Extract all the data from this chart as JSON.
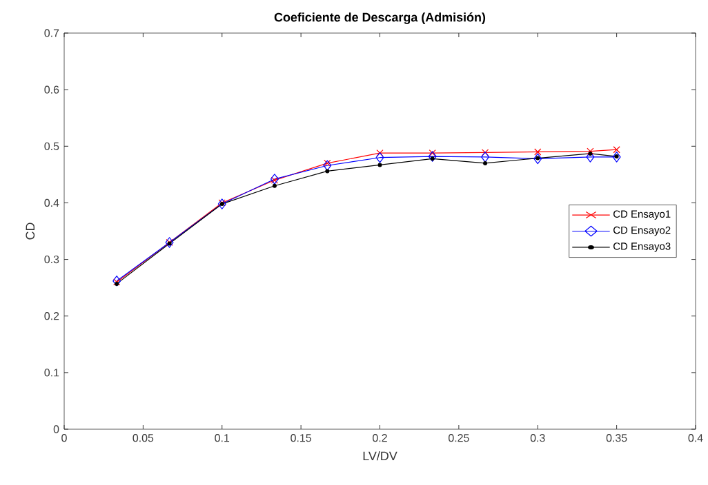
{
  "chart_data": {
    "type": "line",
    "title": "Coeficiente de Descarga (Admisión)",
    "xlabel": "LV/DV",
    "ylabel": "CD",
    "x": [
      0.0333,
      0.0667,
      0.1,
      0.1333,
      0.1667,
      0.2,
      0.2333,
      0.2667,
      0.3,
      0.3333,
      0.35
    ],
    "series": [
      {
        "name": "CD Ensayo1",
        "color": "#ff0000",
        "marker": "cross",
        "values": [
          0.26,
          0.33,
          0.4,
          0.44,
          0.47,
          0.488,
          0.488,
          0.489,
          0.49,
          0.491,
          0.494
        ]
      },
      {
        "name": "CD Ensayo2",
        "color": "#0000ff",
        "marker": "diamond",
        "values": [
          0.262,
          0.33,
          0.398,
          0.442,
          0.466,
          0.48,
          0.482,
          0.481,
          0.478,
          0.481,
          0.481
        ]
      },
      {
        "name": "CD Ensayo3",
        "color": "#000000",
        "marker": "circle",
        "values": [
          0.257,
          0.328,
          0.398,
          0.43,
          0.456,
          0.467,
          0.478,
          0.47,
          0.479,
          0.487,
          0.482
        ]
      }
    ],
    "xlim": [
      0,
      0.4
    ],
    "ylim": [
      0,
      0.7
    ],
    "xticks": [
      0,
      0.05,
      0.1,
      0.15,
      0.2,
      0.25,
      0.3,
      0.35,
      0.4
    ],
    "yticks": [
      0,
      0.1,
      0.2,
      0.3,
      0.4,
      0.5,
      0.6,
      0.7
    ],
    "grid": false,
    "legend": "right",
    "line_style": "solid"
  }
}
